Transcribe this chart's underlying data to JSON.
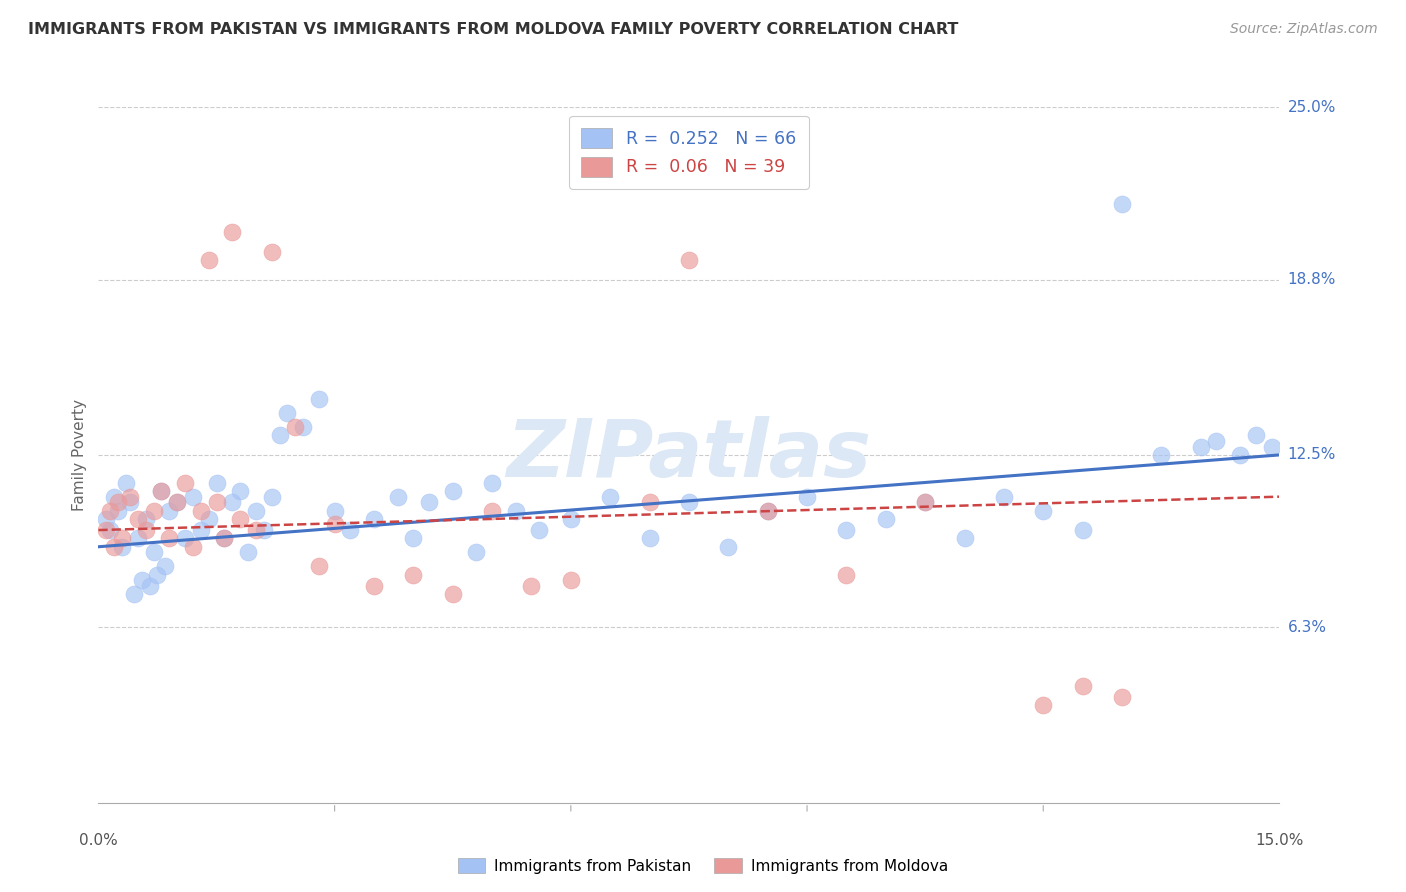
{
  "title": "IMMIGRANTS FROM PAKISTAN VS IMMIGRANTS FROM MOLDOVA FAMILY POVERTY CORRELATION CHART",
  "source": "Source: ZipAtlas.com",
  "ylabel": "Family Poverty",
  "yticks": [
    6.3,
    12.5,
    18.8,
    25.0
  ],
  "ytick_labels": [
    "6.3%",
    "12.5%",
    "18.8%",
    "25.0%"
  ],
  "xlim": [
    0.0,
    15.0
  ],
  "ylim": [
    0.0,
    25.0
  ],
  "pakistan_R": 0.252,
  "pakistan_N": 66,
  "moldova_R": 0.06,
  "moldova_N": 39,
  "pakistan_color": "#a4c2f4",
  "moldova_color": "#ea9999",
  "trend_pakistan_color": "#4472c4",
  "trend_moldova_color": "#cc4444",
  "background_color": "#ffffff",
  "grid_color": "#cccccc",
  "watermark_color": "#dce8f5",
  "pakistan_x": [
    0.1,
    0.15,
    0.2,
    0.25,
    0.3,
    0.35,
    0.4,
    0.5,
    0.6,
    0.7,
    0.8,
    0.9,
    1.0,
    1.1,
    1.2,
    1.3,
    1.4,
    1.5,
    1.6,
    1.7,
    1.8,
    1.9,
    2.0,
    2.1,
    2.2,
    2.3,
    2.4,
    2.6,
    2.8,
    3.0,
    3.2,
    3.5,
    3.8,
    4.0,
    4.2,
    4.5,
    4.8,
    5.0,
    5.3,
    5.6,
    6.0,
    6.5,
    7.0,
    7.5,
    8.0,
    8.5,
    9.0,
    9.5,
    10.0,
    10.5,
    11.0,
    11.5,
    12.0,
    12.5,
    13.0,
    13.5,
    14.0,
    14.2,
    14.5,
    14.7,
    14.9,
    0.45,
    0.55,
    0.65,
    0.75,
    0.85
  ],
  "pakistan_y": [
    10.2,
    9.8,
    11.0,
    10.5,
    9.2,
    11.5,
    10.8,
    9.5,
    10.2,
    9.0,
    11.2,
    10.5,
    10.8,
    9.5,
    11.0,
    9.8,
    10.2,
    11.5,
    9.5,
    10.8,
    11.2,
    9.0,
    10.5,
    9.8,
    11.0,
    13.2,
    14.0,
    13.5,
    14.5,
    10.5,
    9.8,
    10.2,
    11.0,
    9.5,
    10.8,
    11.2,
    9.0,
    11.5,
    10.5,
    9.8,
    10.2,
    11.0,
    9.5,
    10.8,
    9.2,
    10.5,
    11.0,
    9.8,
    10.2,
    10.8,
    9.5,
    11.0,
    10.5,
    9.8,
    21.5,
    12.5,
    12.8,
    13.0,
    12.5,
    13.2,
    12.8,
    7.5,
    8.0,
    7.8,
    8.2,
    8.5
  ],
  "moldova_x": [
    0.1,
    0.15,
    0.2,
    0.25,
    0.3,
    0.4,
    0.5,
    0.6,
    0.7,
    0.8,
    0.9,
    1.0,
    1.1,
    1.2,
    1.3,
    1.4,
    1.5,
    1.6,
    1.7,
    1.8,
    2.0,
    2.2,
    2.5,
    2.8,
    3.0,
    3.5,
    4.0,
    4.5,
    5.0,
    5.5,
    6.0,
    7.0,
    7.5,
    8.5,
    9.5,
    10.5,
    12.0,
    12.5,
    13.0
  ],
  "moldova_y": [
    9.8,
    10.5,
    9.2,
    10.8,
    9.5,
    11.0,
    10.2,
    9.8,
    10.5,
    11.2,
    9.5,
    10.8,
    11.5,
    9.2,
    10.5,
    19.5,
    10.8,
    9.5,
    20.5,
    10.2,
    9.8,
    19.8,
    13.5,
    8.5,
    10.0,
    7.8,
    8.2,
    7.5,
    10.5,
    7.8,
    8.0,
    10.8,
    19.5,
    10.5,
    8.2,
    10.8,
    3.5,
    4.2,
    3.8
  ]
}
